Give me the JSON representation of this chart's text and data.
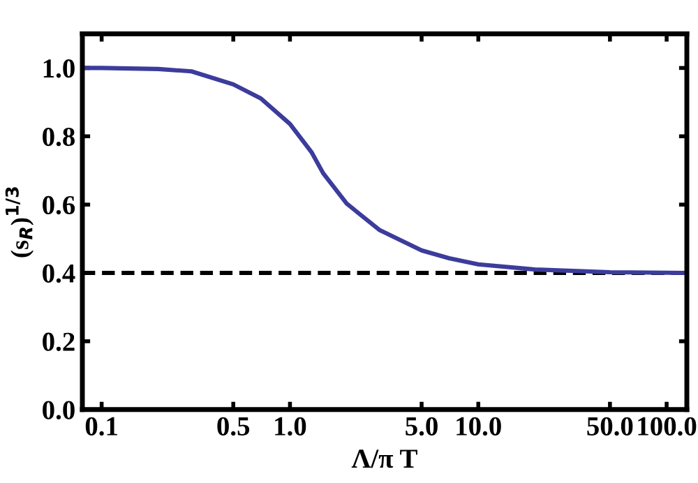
{
  "chart_data": {
    "type": "line",
    "xlabel": "Λ/π T",
    "ylabel": "(s$_{R}$)$^{1/3}$",
    "log": "x",
    "x": [
      0.079,
      0.1,
      0.2,
      0.3,
      0.5,
      0.7,
      1.0,
      1.3,
      1.5,
      2,
      3,
      5,
      7,
      10,
      20,
      50,
      128
    ],
    "series": [
      {
        "color": "#3c3c9c",
        "values": [
          1.0,
          1.0,
          0.997,
          0.99,
          0.952,
          0.911,
          0.836,
          0.754,
          0.692,
          0.603,
          0.525,
          0.466,
          0.443,
          0.425,
          0.41,
          0.402,
          0.4
        ]
      }
    ],
    "xlim": [
      0.079,
      128
    ],
    "ylim": [
      0,
      1.1
    ],
    "xticks": [
      0.1,
      0.5,
      {
        "value": 1,
        "label": "1.0"
      },
      {
        "value": 5,
        "label": "5.0"
      },
      {
        "value": 10,
        "label": "10.0"
      },
      {
        "value": 50,
        "label": "50.0"
      },
      {
        "value": 100,
        "label": "100.0"
      }
    ],
    "yticks": [
      {
        "value": 0,
        "label": "0.0"
      },
      0.2,
      0.4,
      0.6,
      0.8,
      {
        "value": 1,
        "label": "1.0"
      }
    ],
    "ref_lines": [
      {
        "axis": "y",
        "value": 0.4,
        "color": "#000000",
        "line_style": "dashed"
      }
    ],
    "grid": false,
    "legend": false,
    "marker": "none",
    "line_style": "solid"
  }
}
